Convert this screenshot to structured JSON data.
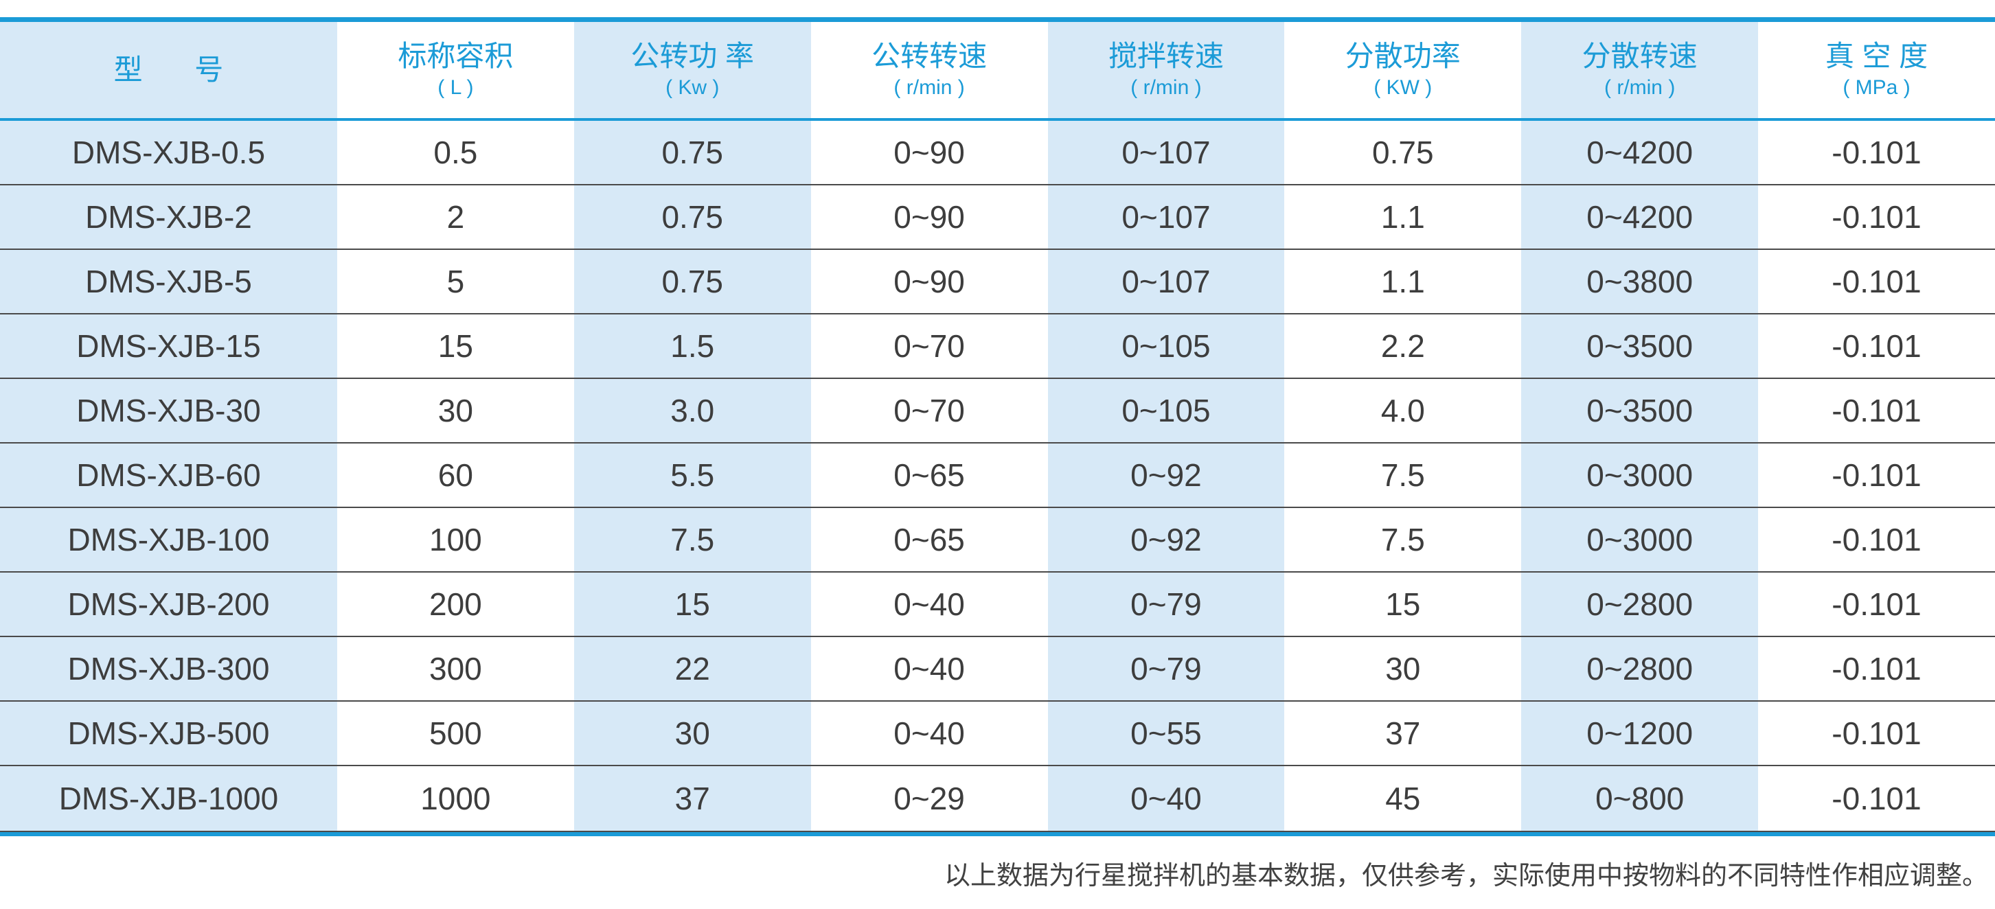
{
  "table": {
    "columns": [
      {
        "title": "型　号",
        "unit": ""
      },
      {
        "title": "标称容积",
        "unit": "( L )"
      },
      {
        "title": "公转功 率",
        "unit": "( Kw )"
      },
      {
        "title": "公转转速",
        "unit": "( r/min )"
      },
      {
        "title": "搅拌转速",
        "unit": "( r/min )"
      },
      {
        "title": "分散功率",
        "unit": "( KW )"
      },
      {
        "title": "分散转速",
        "unit": "( r/min )"
      },
      {
        "title": "真 空 度",
        "unit": "( MPa )"
      }
    ],
    "rows": [
      [
        "DMS-XJB-0.5",
        "0.5",
        "0.75",
        "0~90",
        "0~107",
        "0.75",
        "0~4200",
        "-0.101"
      ],
      [
        "DMS-XJB-2",
        "2",
        "0.75",
        "0~90",
        "0~107",
        "1.1",
        "0~4200",
        "-0.101"
      ],
      [
        "DMS-XJB-5",
        "5",
        "0.75",
        "0~90",
        "0~107",
        "1.1",
        "0~3800",
        "-0.101"
      ],
      [
        "DMS-XJB-15",
        "15",
        "1.5",
        "0~70",
        "0~105",
        "2.2",
        "0~3500",
        "-0.101"
      ],
      [
        "DMS-XJB-30",
        "30",
        "3.0",
        "0~70",
        "0~105",
        "4.0",
        "0~3500",
        "-0.101"
      ],
      [
        "DMS-XJB-60",
        "60",
        "5.5",
        "0~65",
        "0~92",
        "7.5",
        "0~3000",
        "-0.101"
      ],
      [
        "DMS-XJB-100",
        "100",
        "7.5",
        "0~65",
        "0~92",
        "7.5",
        "0~3000",
        "-0.101"
      ],
      [
        "DMS-XJB-200",
        "200",
        "15",
        "0~40",
        "0~79",
        "15",
        "0~2800",
        "-0.101"
      ],
      [
        "DMS-XJB-300",
        "300",
        "22",
        "0~40",
        "0~79",
        "30",
        "0~2800",
        "-0.101"
      ],
      [
        "DMS-XJB-500",
        "500",
        "30",
        "0~40",
        "0~55",
        "37",
        "0~1200",
        "-0.101"
      ],
      [
        "DMS-XJB-1000",
        "1000",
        "37",
        "0~29",
        "0~40",
        "45",
        "0~800",
        "-0.101"
      ]
    ]
  },
  "footer": {
    "note": "以上数据为行星搅拌机的基本数据，仅供参考，实际使用中按物料的不同特性作相应调整。"
  },
  "colors": {
    "accent": "#1b9bd7",
    "light_blue": "#d7e9f7",
    "text_dark": "#3d3d3d",
    "separator": "#4a4a4a",
    "footer_text": "#414141"
  }
}
